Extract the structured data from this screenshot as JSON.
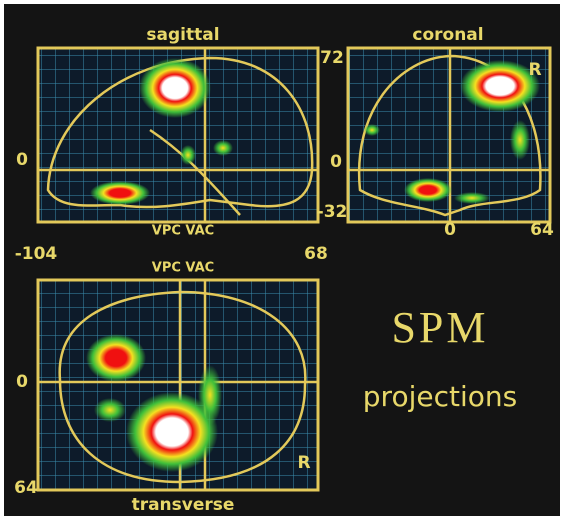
{
  "sagittal": {
    "title": "sagittal",
    "top": "72",
    "zero": "0",
    "bottom": "-32",
    "axis_label": "VPC VAC",
    "left": "-104",
    "right": "68"
  },
  "coronal": {
    "title": "coronal",
    "zero_y": "0",
    "zero_x": "0",
    "right": "64",
    "side": "R"
  },
  "transverse": {
    "title": "transverse",
    "axis_label": "VPC VAC",
    "zero": "0",
    "bottom": "64",
    "side": "R"
  },
  "caption": {
    "title": "SPM",
    "subtitle": "projections"
  }
}
